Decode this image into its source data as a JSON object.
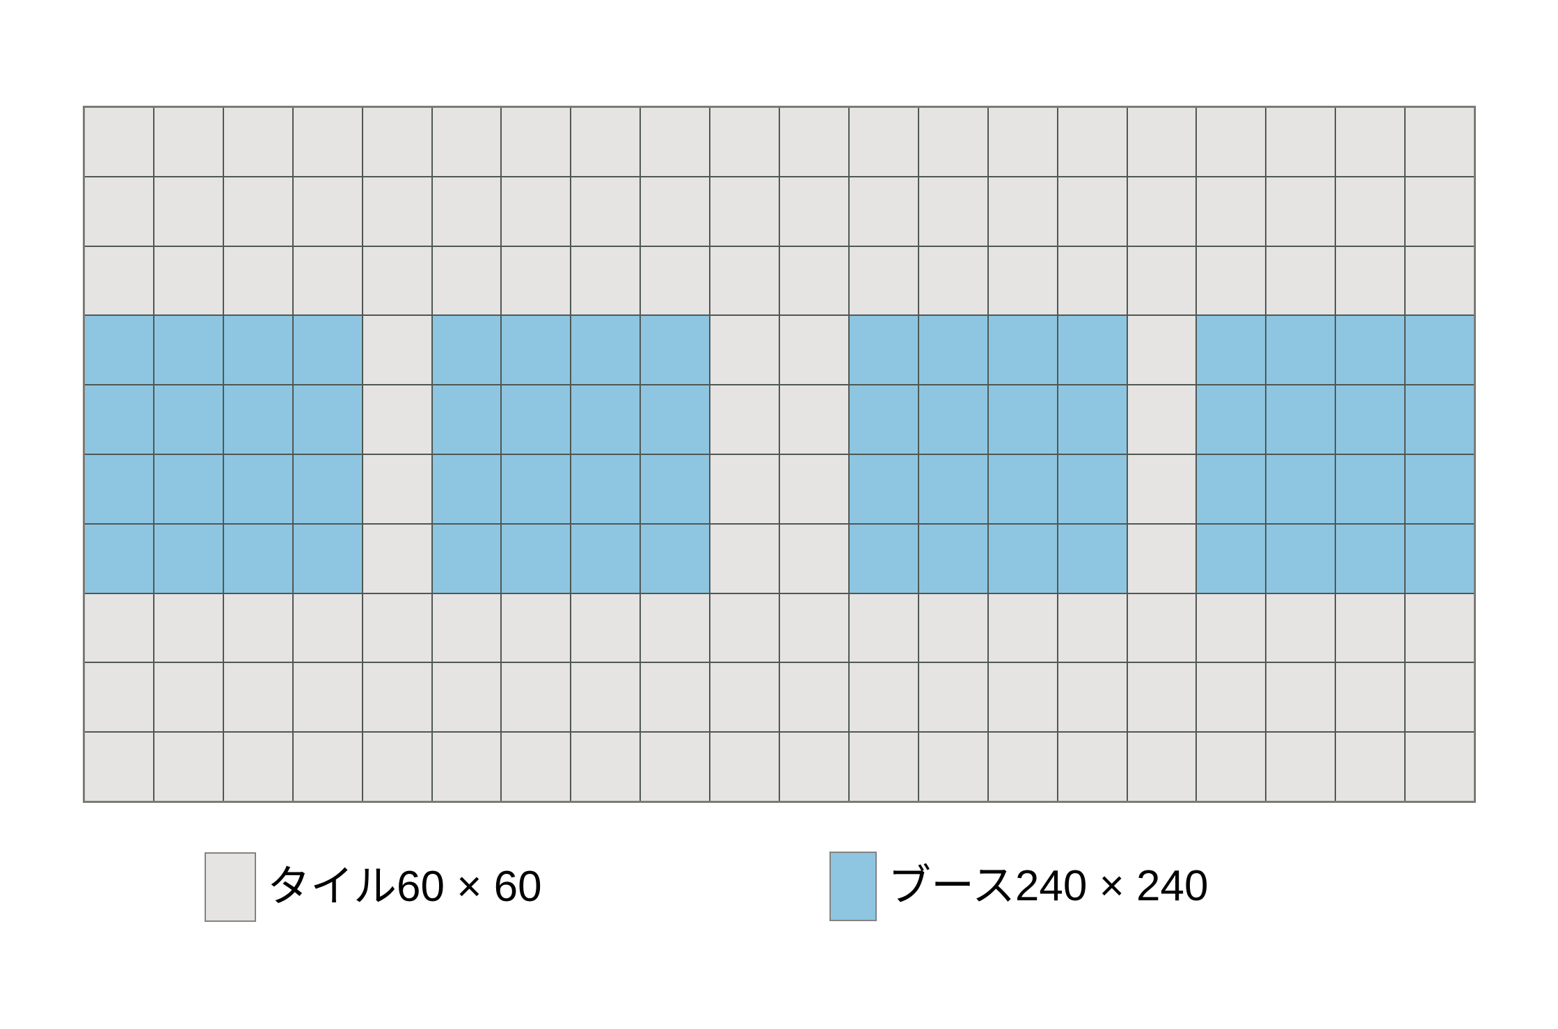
{
  "diagram": {
    "grid": {
      "columns": 20,
      "rows": 10,
      "tile_color": "#e5e4e2",
      "booth_color": "#8ec6e1",
      "line_color": "#4f5752",
      "outer_border_color": "#7b7b76",
      "booth_rows": [
        3,
        4,
        5,
        6
      ],
      "booth_column_groups": [
        [
          0,
          3
        ],
        [
          5,
          8
        ],
        [
          11,
          14
        ],
        [
          16,
          19
        ]
      ]
    },
    "legend": {
      "items": [
        {
          "id": "tile",
          "label": "タイル60 × 60",
          "swatch_color": "#e5e4e2",
          "swatch_border_color": "#828282"
        },
        {
          "id": "booth",
          "label": "ブース240 × 240",
          "swatch_color": "#8ec6e1",
          "swatch_border_color": "#828282"
        }
      ]
    }
  }
}
